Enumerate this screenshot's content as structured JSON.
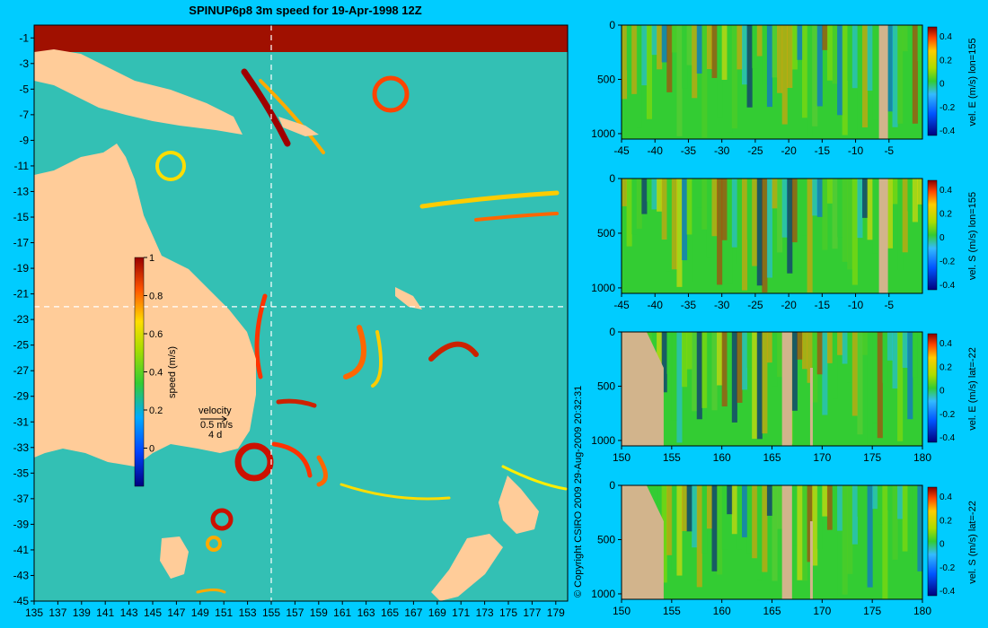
{
  "title": "SPINUP6p8 3m speed for 19-Apr-1998 12Z",
  "copyright": "© Copyright CSIRO 2009   29-Aug-2009 20:32:31",
  "colors": {
    "background": "#00ccff",
    "land": "#ffcc99",
    "section_land": "#d2b48c",
    "ocean": "#33cc33",
    "marker": "#ffffff"
  },
  "chart_data": [
    {
      "id": "map",
      "type": "heatmap",
      "title": "SPINUP6p8 3m speed for 19-Apr-1998 12Z",
      "x_ticks": [
        "135",
        "137",
        "139",
        "141",
        "143",
        "145",
        "147",
        "149",
        "151",
        "153",
        "155",
        "157",
        "159",
        "161",
        "163",
        "165",
        "167",
        "169",
        "171",
        "173",
        "175",
        "177",
        "179"
      ],
      "y_ticks": [
        "-1",
        "-3",
        "-5",
        "-7",
        "-9",
        "-11",
        "-13",
        "-15",
        "-17",
        "-19",
        "-21",
        "-23",
        "-25",
        "-27",
        "-29",
        "-31",
        "-33",
        "-35",
        "-37",
        "-39",
        "-41",
        "-43",
        "-45"
      ],
      "xlim": [
        135,
        180
      ],
      "ylim": [
        -45,
        0
      ],
      "marker_lon": 155,
      "marker_lat": -22,
      "colorbar": {
        "label": "speed (m/s)",
        "ticks": [
          "0",
          "0.2",
          "0.4",
          "0.6",
          "0.8",
          "1"
        ],
        "range": [
          -0.2,
          1
        ]
      },
      "velocity_key": {
        "title": "velocity",
        "speed": "0.5 m/s",
        "time": "4 d"
      }
    },
    {
      "id": "sec1",
      "type": "heatmap",
      "axis": "lat",
      "label": "vel. E (m/s) lon=155",
      "x_ticks": [
        "-45",
        "-40",
        "-35",
        "-30",
        "-25",
        "-20",
        "-15",
        "-10",
        "-5"
      ],
      "xlim": [
        -45,
        0
      ],
      "y_ticks": [
        "0",
        "500",
        "1000"
      ],
      "ylim": [
        1050,
        0
      ],
      "colorbar_ticks": [
        "0.4",
        "0.2",
        "0",
        "-0.2",
        "-0.4"
      ]
    },
    {
      "id": "sec2",
      "type": "heatmap",
      "axis": "lat",
      "label": "vel. S (m/s) lon=155",
      "x_ticks": [
        "-45",
        "-40",
        "-35",
        "-30",
        "-25",
        "-20",
        "-15",
        "-10",
        "-5"
      ],
      "xlim": [
        -45,
        0
      ],
      "y_ticks": [
        "0",
        "500",
        "1000"
      ],
      "ylim": [
        1050,
        0
      ],
      "colorbar_ticks": [
        "0.4",
        "0.2",
        "0",
        "-0.2",
        "-0.4"
      ]
    },
    {
      "id": "sec3",
      "type": "heatmap",
      "axis": "lon",
      "label": "vel. E (m/s) lat=-22",
      "x_ticks": [
        "150",
        "155",
        "160",
        "165",
        "170",
        "175",
        "180"
      ],
      "xlim": [
        150,
        180
      ],
      "y_ticks": [
        "0",
        "500",
        "1000"
      ],
      "ylim": [
        1050,
        0
      ],
      "colorbar_ticks": [
        "0.4",
        "0.2",
        "0",
        "-0.2",
        "-0.4"
      ]
    },
    {
      "id": "sec4",
      "type": "heatmap",
      "axis": "lon",
      "label": "vel. S (m/s) lat=-22",
      "x_ticks": [
        "150",
        "155",
        "160",
        "165",
        "170",
        "175",
        "180"
      ],
      "xlim": [
        150,
        180
      ],
      "y_ticks": [
        "0",
        "500",
        "1000"
      ],
      "ylim": [
        1050,
        0
      ],
      "colorbar_ticks": [
        "0.4",
        "0.2",
        "0",
        "-0.2",
        "-0.4"
      ]
    }
  ]
}
